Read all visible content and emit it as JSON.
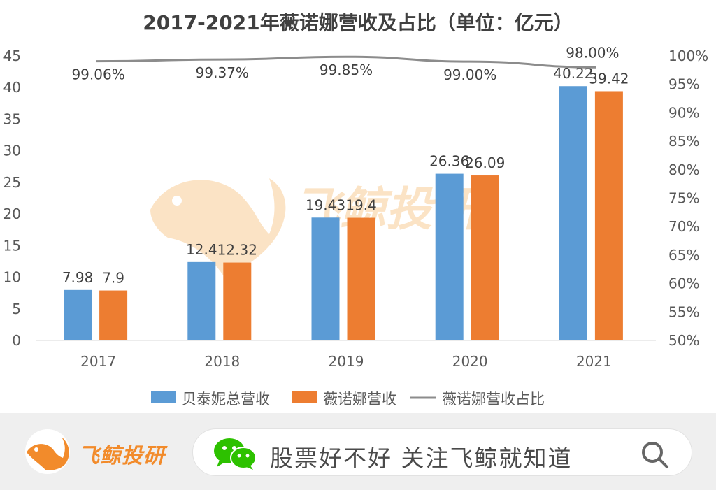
{
  "chart_data": {
    "type": "bar",
    "title": "2017-2021年薇诺娜营收及占比（单位：亿元）",
    "categories": [
      "2017",
      "2018",
      "2019",
      "2020",
      "2021"
    ],
    "series": [
      {
        "name": "贝泰妮总营收",
        "type": "bar",
        "axis": "left",
        "color": "#5b9bd5",
        "values": [
          7.98,
          12.4,
          19.43,
          26.36,
          40.22
        ],
        "labels": [
          "7.98",
          "12.4",
          "19.43",
          "26.36",
          "40.22"
        ]
      },
      {
        "name": "薇诺娜营收",
        "type": "bar",
        "axis": "left",
        "color": "#ed7d31",
        "values": [
          7.9,
          12.32,
          19.4,
          26.09,
          39.42
        ],
        "labels": [
          "7.9",
          "12.32",
          "19.4",
          "26.09",
          "39.42"
        ]
      },
      {
        "name": "薇诺娜营收占比",
        "type": "line",
        "axis": "right",
        "color": "#8c8c8c",
        "values": [
          99.06,
          99.37,
          99.85,
          99.0,
          98.0
        ],
        "labels": [
          "99.06%",
          "99.37%",
          "99.85%",
          "99.00%",
          "98.00%"
        ]
      }
    ],
    "y_left": {
      "min": 0,
      "max": 45,
      "ticks": [
        "0",
        "5",
        "10",
        "15",
        "20",
        "25",
        "30",
        "35",
        "40",
        "45"
      ]
    },
    "y_right": {
      "min": 50,
      "max": 100,
      "ticks": [
        "50%",
        "55%",
        "60%",
        "65%",
        "70%",
        "75%",
        "80%",
        "85%",
        "90%",
        "95%",
        "100%"
      ]
    },
    "grid": false,
    "legend_position": "bottom",
    "watermark": "飞鲸投研"
  },
  "footer": {
    "brand": "飞鲸投研",
    "search_text": "股票好不好 关注飞鲸就知道",
    "icons": [
      "whale-logo-icon",
      "wechat-icon",
      "search-icon"
    ],
    "accent_color": "#f28b2b",
    "wechat_color": "#2dc100"
  }
}
